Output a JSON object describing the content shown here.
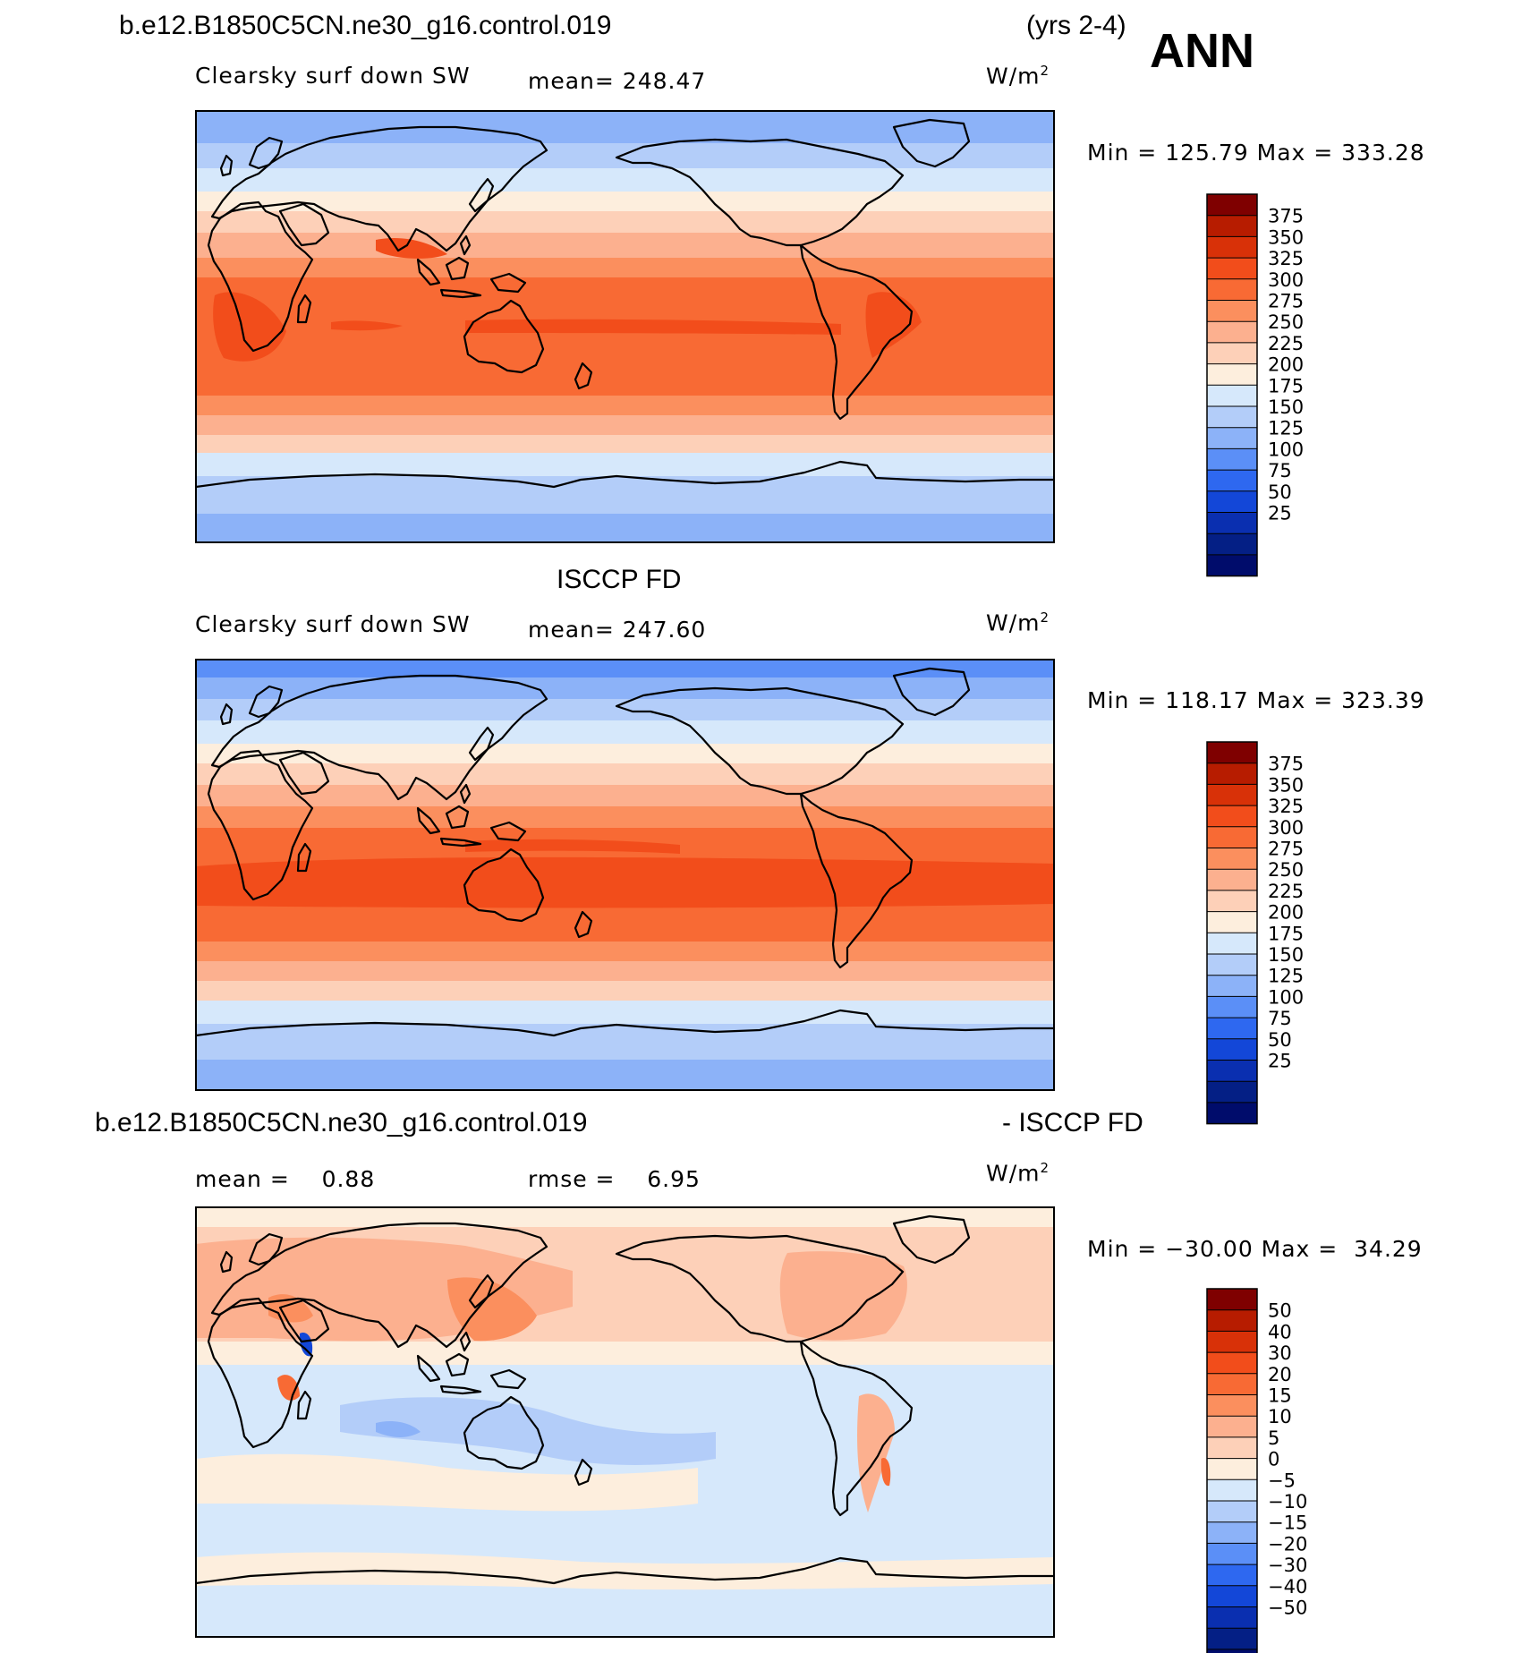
{
  "header": {
    "case_name": "b.e12.B1850C5CN.ne30_g16.control.019",
    "years": "(yrs 2-4)",
    "season": "ANN"
  },
  "panels": [
    {
      "id": "model",
      "field_label": "Clearsky surf down SW",
      "stat_text": "mean= 248.47",
      "units": "W/m",
      "units_sup": "2",
      "minmax": "Min = 125.79 Max = 333.28",
      "colorbar_labels": [
        "375",
        "350",
        "325",
        "300",
        "275",
        "250",
        "225",
        "200",
        "175",
        "150",
        "125",
        "100",
        "75",
        "50",
        "25"
      ],
      "colorbar_colors": [
        "#7f0000",
        "#b71c00",
        "#d83108",
        "#f24d1b",
        "#f86a34",
        "#fb8f5e",
        "#fcb08f",
        "#fdd0b8",
        "#fdeedd",
        "#d6e8fb",
        "#b3cdf9",
        "#8cb2f8",
        "#5b8ff7",
        "#2e68f0",
        "#1347d8",
        "#0a2fb0",
        "#041f85",
        "#000c6b"
      ]
    },
    {
      "id": "obs",
      "title": "ISCCP FD",
      "field_label": "Clearsky surf down SW",
      "stat_text": "mean= 247.60",
      "units": "W/m",
      "units_sup": "2",
      "minmax": "Min = 118.17 Max = 323.39",
      "colorbar_labels": [
        "375",
        "350",
        "325",
        "300",
        "275",
        "250",
        "225",
        "200",
        "175",
        "150",
        "125",
        "100",
        "75",
        "50",
        "25"
      ],
      "colorbar_colors": [
        "#7f0000",
        "#b71c00",
        "#d83108",
        "#f24d1b",
        "#f86a34",
        "#fb8f5e",
        "#fcb08f",
        "#fdd0b8",
        "#fdeedd",
        "#d6e8fb",
        "#b3cdf9",
        "#8cb2f8",
        "#5b8ff7",
        "#2e68f0",
        "#1347d8",
        "#0a2fb0",
        "#041f85",
        "#000c6b"
      ]
    },
    {
      "id": "diff",
      "title_left": "b.e12.B1850C5CN.ne30_g16.control.019",
      "title_right": "- ISCCP FD",
      "stat_mean": "mean =    0.88",
      "stat_rmse": "rmse =    6.95",
      "units": "W/m",
      "units_sup": "2",
      "minmax": "Min = −30.00 Max =  34.29",
      "colorbar_labels": [
        "50",
        "40",
        "30",
        "20",
        "15",
        "10",
        "5",
        "0",
        "−5",
        "−10",
        "−15",
        "−20",
        "−30",
        "−40",
        "−50"
      ],
      "colorbar_colors": [
        "#7f0000",
        "#b71c00",
        "#d83108",
        "#f24d1b",
        "#f86a34",
        "#fb8f5e",
        "#fcb08f",
        "#fdd0b8",
        "#fdeedd",
        "#d6e8fb",
        "#b3cdf9",
        "#8cb2f8",
        "#5b8ff7",
        "#2e68f0",
        "#1347d8",
        "#0a2fb0",
        "#041f85",
        "#000c6b"
      ]
    }
  ]
}
